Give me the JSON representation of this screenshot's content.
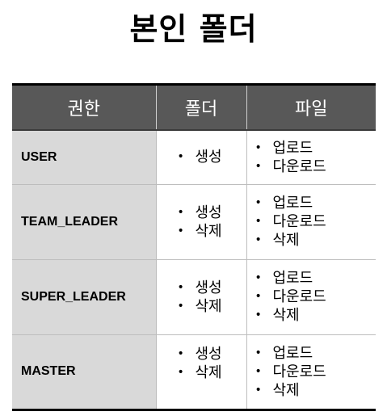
{
  "title": "본인 폴더",
  "table": {
    "headers": {
      "role": "권한",
      "folder": "폴더",
      "file": "파일"
    },
    "rows": [
      {
        "role": "USER",
        "folder": [
          "생성"
        ],
        "file": [
          "업로드",
          "다운로드"
        ]
      },
      {
        "role": "TEAM_LEADER",
        "folder": [
          "생성",
          "삭제"
        ],
        "file": [
          "업로드",
          "다운로드",
          "삭제"
        ]
      },
      {
        "role": "SUPER_LEADER",
        "folder": [
          "생성",
          "삭제"
        ],
        "file": [
          "업로드",
          "다운로드",
          "삭제"
        ]
      },
      {
        "role": "MASTER",
        "folder": [
          "생성",
          "삭제"
        ],
        "file": [
          "업로드",
          "다운로드",
          "삭제"
        ]
      }
    ]
  },
  "colors": {
    "header_bg": "#585858",
    "header_text": "#ffffff",
    "role_cell_bg": "#d9d9d9",
    "border": "#000000"
  }
}
